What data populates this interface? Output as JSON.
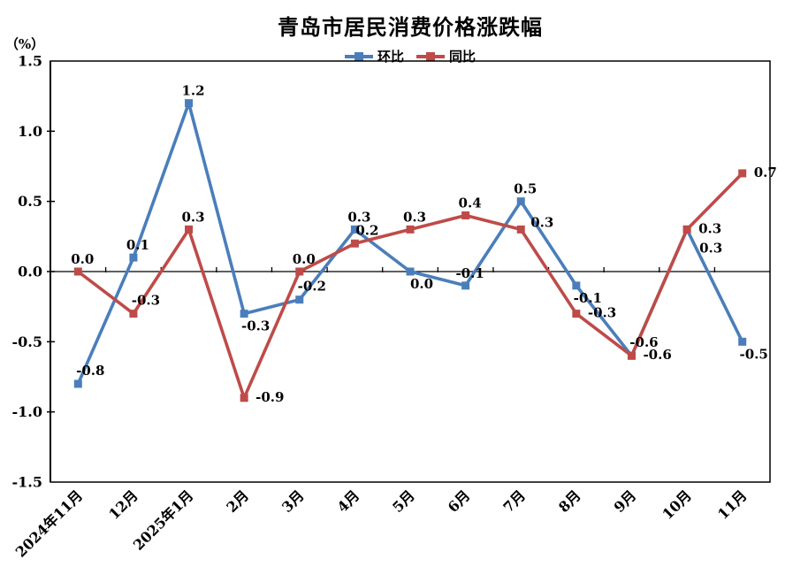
{
  "chart_data": {
    "type": "line",
    "title": "青岛市居民消费价格涨跌幅",
    "unit_label": "（%）",
    "categories": [
      "2024年11月",
      "12月",
      "2025年1月",
      "2月",
      "3月",
      "4月",
      "5月",
      "6月",
      "7月",
      "8月",
      "9月",
      "10月",
      "11月"
    ],
    "series": [
      {
        "name": "环比",
        "color": "#4A7EBB",
        "marker": "square",
        "values": [
          -0.8,
          0.1,
          1.2,
          -0.3,
          -0.2,
          0.3,
          0.0,
          -0.1,
          0.5,
          -0.1,
          -0.6,
          0.3,
          -0.5
        ],
        "label_pos": [
          "above-right",
          "above",
          "above",
          "below-right",
          "above-right",
          "above",
          "below-right",
          "above",
          "above",
          "below-right",
          "above-right",
          "right-low",
          "below-right"
        ]
      },
      {
        "name": "同比",
        "color": "#BE4B48",
        "marker": "square",
        "values": [
          0.0,
          -0.3,
          0.3,
          -0.9,
          0.0,
          0.2,
          0.3,
          0.4,
          0.3,
          -0.3,
          -0.6,
          0.3,
          0.7
        ],
        "label_pos": [
          "above",
          "above-right",
          "above",
          "right",
          "above",
          "above-right",
          "above",
          "above",
          "right-up",
          "right",
          "right",
          "right",
          "right"
        ]
      }
    ],
    "ylim": [
      -1.5,
      1.5
    ],
    "ytick_step": 0.5,
    "ytick_labels": [
      "1.5",
      "1.0",
      "0.5",
      "0.0",
      "-0.5",
      "-1.0",
      "-1.5"
    ],
    "grid": false,
    "legend_position": "top-center",
    "axis_color": "#000000",
    "data_label_color": "#000000",
    "background_color": "#FFFFFF"
  }
}
